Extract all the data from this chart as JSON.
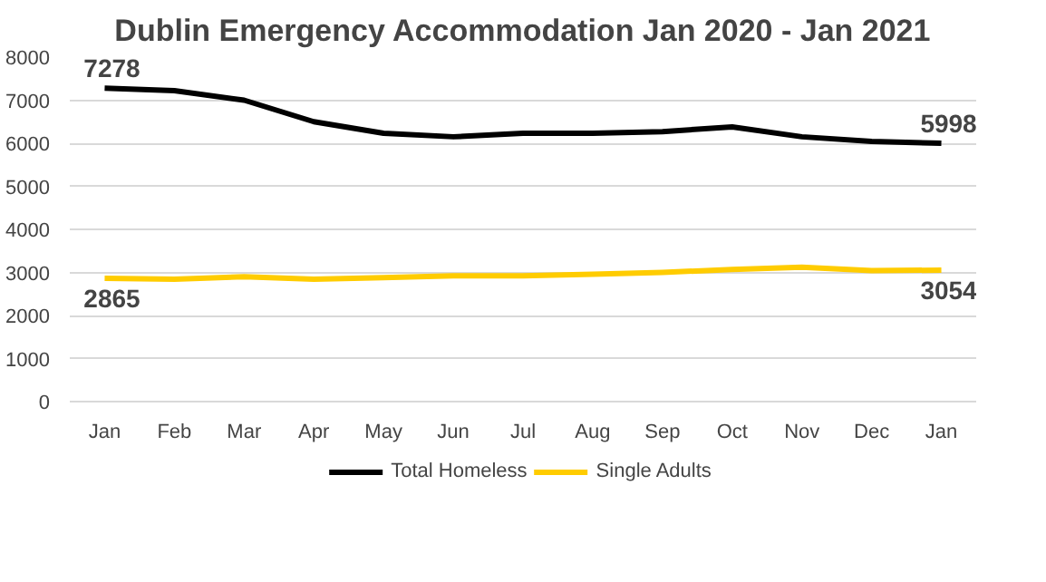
{
  "chart_data": {
    "type": "line",
    "title": "Dublin Emergency Accommodation Jan 2020 - Jan 2021",
    "categories": [
      "Jan",
      "Feb",
      "Mar",
      "Apr",
      "May",
      "Jun",
      "Jul",
      "Aug",
      "Sep",
      "Oct",
      "Nov",
      "Dec",
      "Jan"
    ],
    "series": [
      {
        "name": "Total Homeless",
        "color": "#000000",
        "values": [
          7278,
          7220,
          7000,
          6500,
          6230,
          6150,
          6230,
          6230,
          6270,
          6380,
          6150,
          6040,
          5998
        ],
        "value_labels": [
          "7278",
          null,
          null,
          null,
          null,
          null,
          null,
          null,
          null,
          null,
          null,
          null,
          "5998"
        ]
      },
      {
        "name": "Single Adults",
        "color": "#ffcc00",
        "values": [
          2865,
          2840,
          2900,
          2840,
          2880,
          2920,
          2920,
          2960,
          3000,
          3070,
          3120,
          3040,
          3054
        ],
        "value_labels": [
          "2865",
          null,
          null,
          null,
          null,
          null,
          null,
          null,
          null,
          null,
          null,
          null,
          "3054"
        ]
      }
    ],
    "ylim": [
      0,
      8000
    ],
    "yticks": [
      0,
      1000,
      2000,
      3000,
      4000,
      5000,
      6000,
      7000,
      8000
    ],
    "grid": "y",
    "legend": "bottom",
    "marker": "none",
    "line_style": "solid"
  }
}
